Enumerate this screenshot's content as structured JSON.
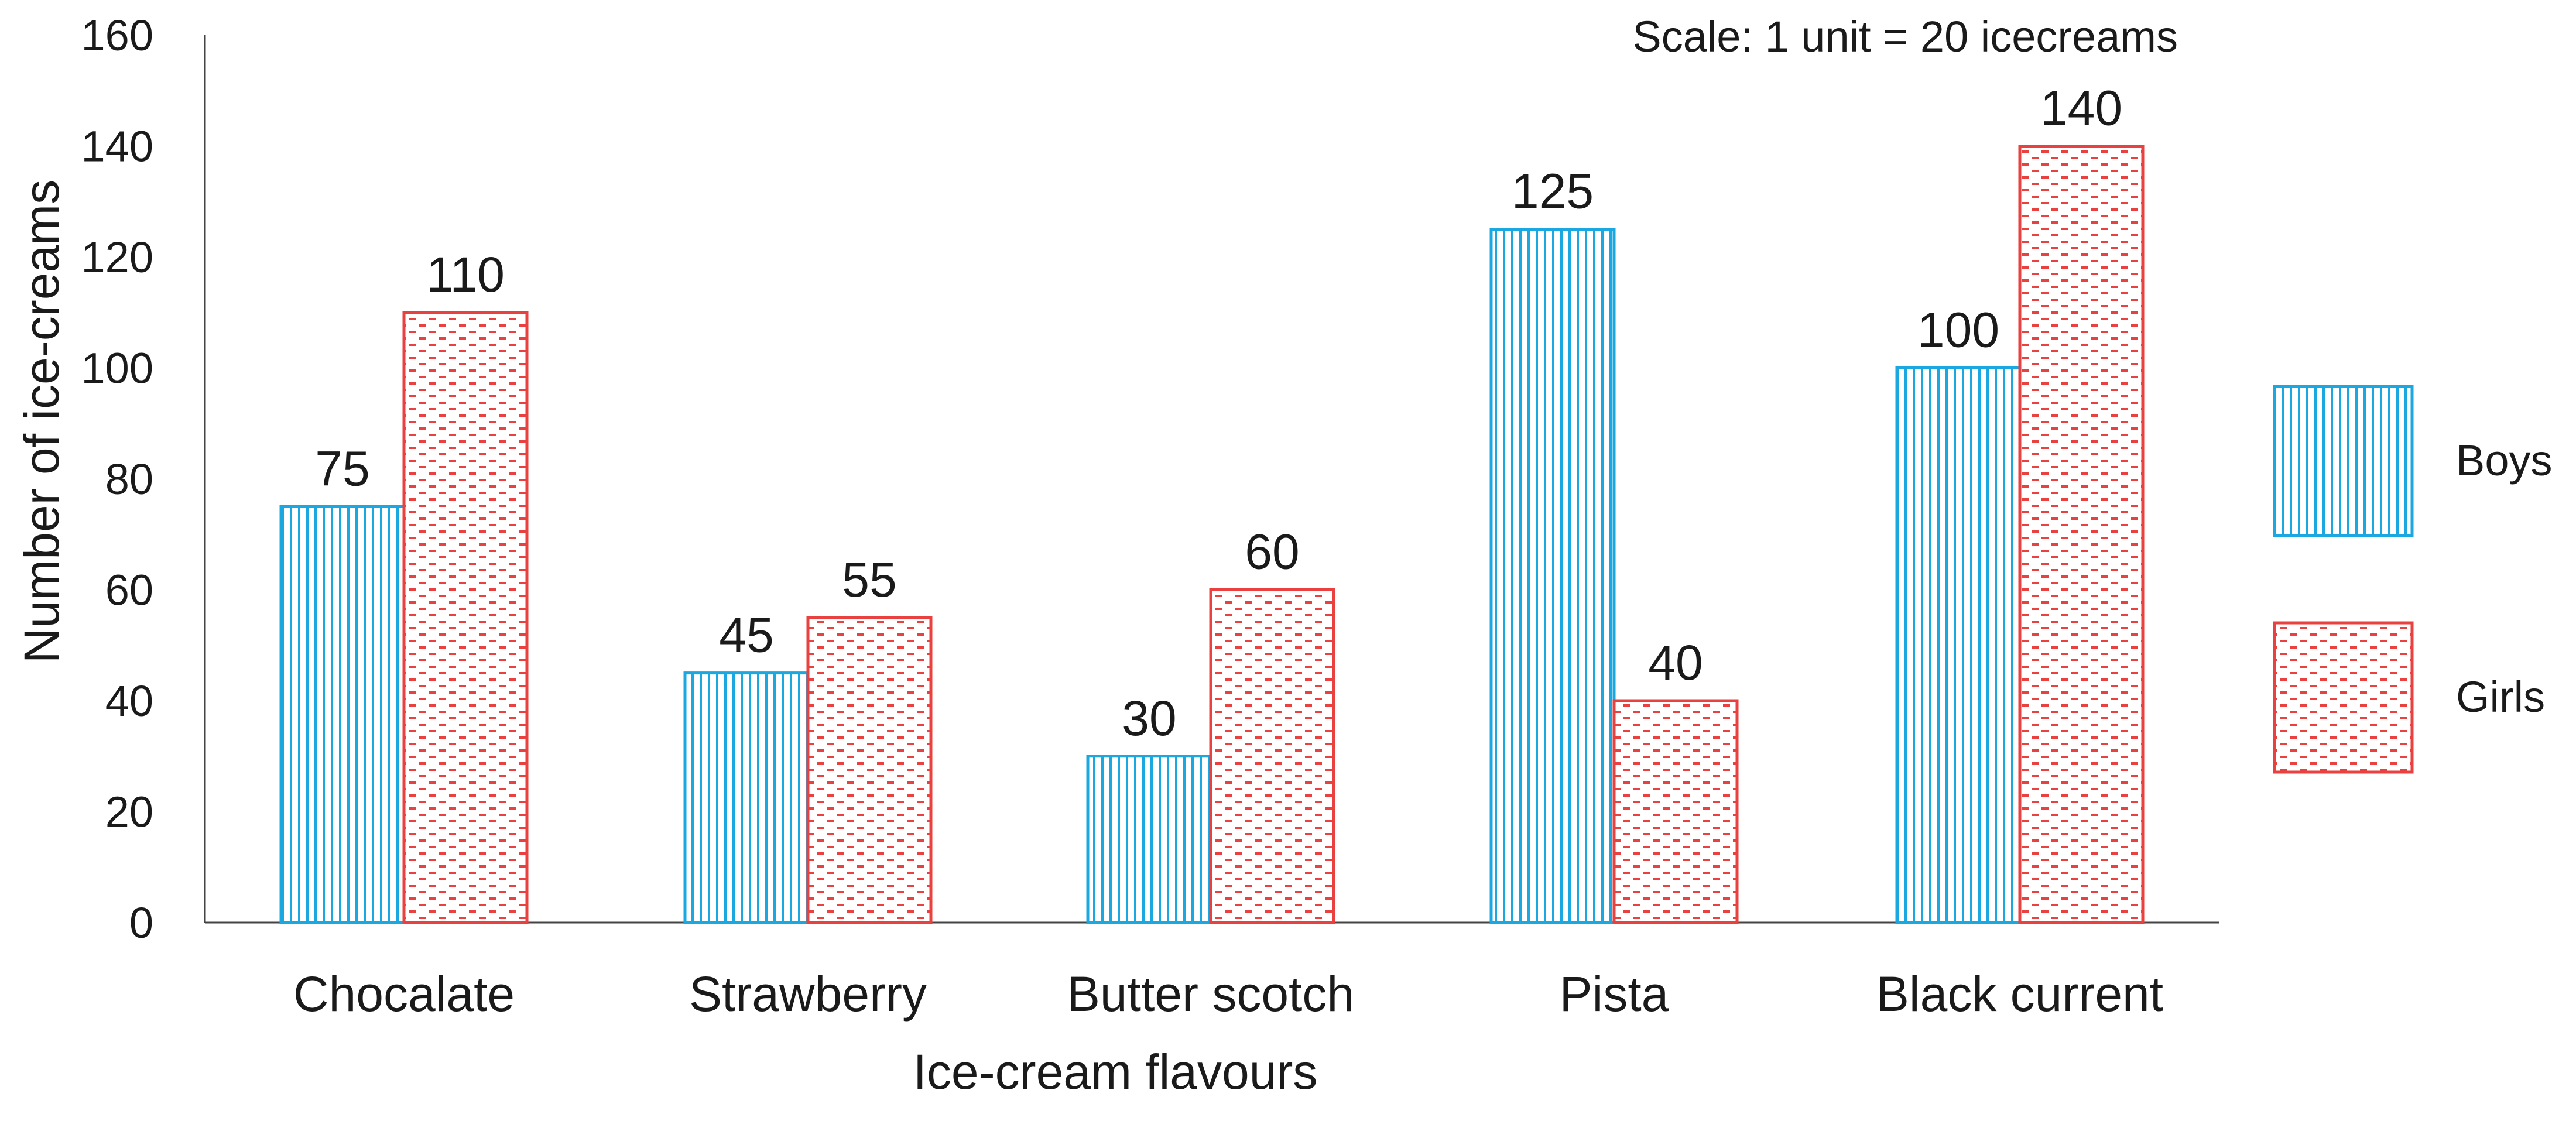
{
  "chart_data": {
    "type": "bar",
    "title": "",
    "xlabel": "Ice-cream flavours",
    "ylabel": "Number of ice-creams",
    "annotation": "Scale: 1 unit = 20 icecreams",
    "categories": [
      "Chocalate",
      "Strawberry",
      "Butter scotch",
      "Pista",
      "Black current"
    ],
    "series": [
      {
        "name": "Boys",
        "values": [
          75,
          45,
          30,
          125,
          100
        ],
        "color": "#1BA8E0",
        "pattern": "vertical-lines"
      },
      {
        "name": "Girls",
        "values": [
          110,
          55,
          60,
          40,
          140
        ],
        "color": "#E8413F",
        "pattern": "dashed-horizontal-lines"
      }
    ],
    "ylim": [
      0,
      160
    ],
    "yticks": [
      0,
      20,
      40,
      60,
      80,
      100,
      120,
      140,
      160
    ],
    "grid": false,
    "legend_position": "right",
    "data_labels": true
  }
}
